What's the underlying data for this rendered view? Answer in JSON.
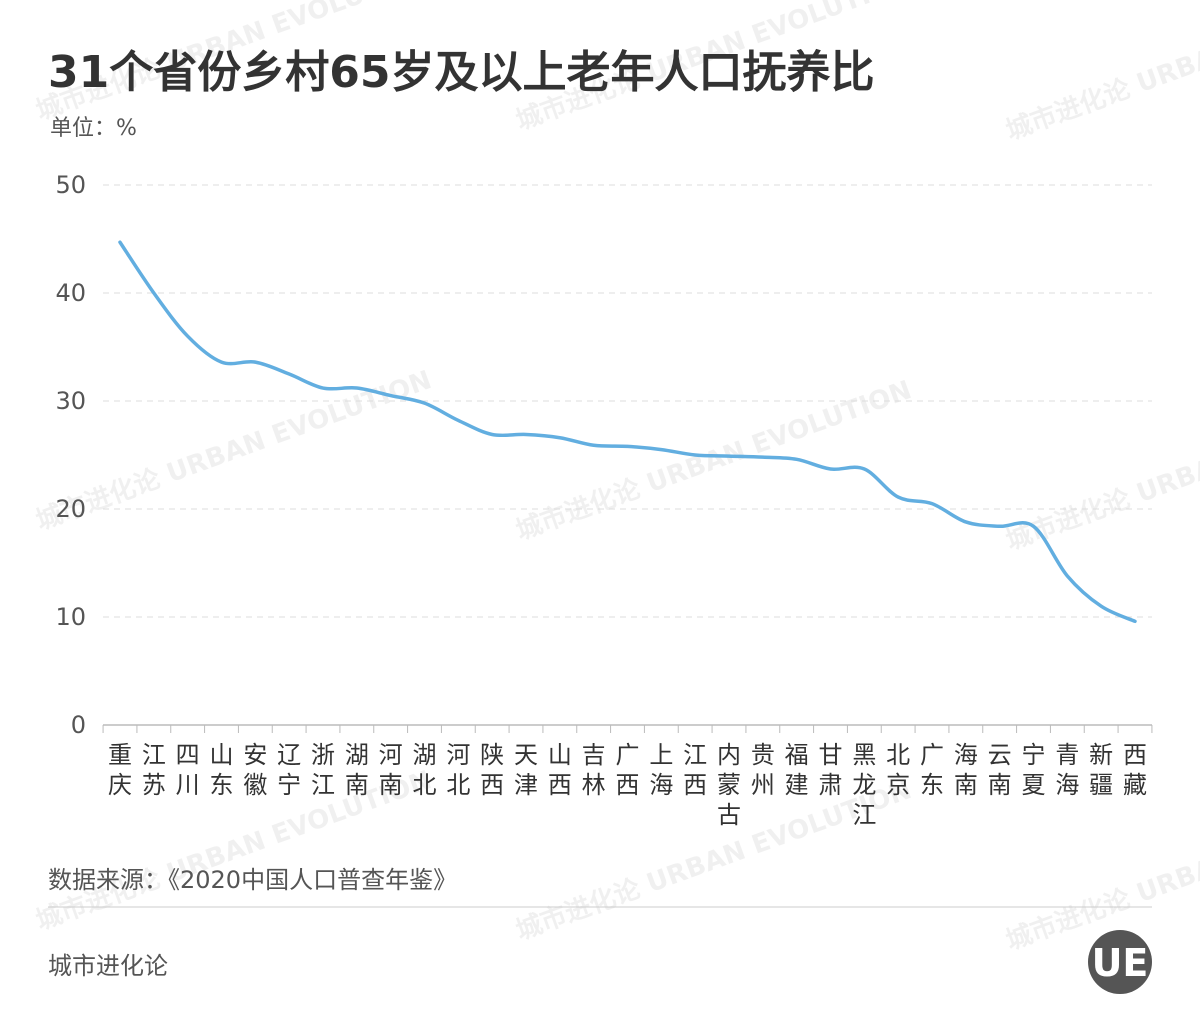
{
  "chart_data": {
    "type": "line",
    "title": "31个省份乡村65岁及以上老年人口抚养比",
    "unit": "单位：%",
    "categories": [
      "重庆",
      "江苏",
      "四川",
      "山东",
      "安徽",
      "辽宁",
      "浙江",
      "湖南",
      "河南",
      "湖北",
      "河北",
      "陕西",
      "天津",
      "山西",
      "吉林",
      "广西",
      "上海",
      "江西",
      "内蒙古",
      "贵州",
      "福建",
      "甘肃",
      "黑龙江",
      "北京",
      "广东",
      "海南",
      "云南",
      "宁夏",
      "青海",
      "新疆",
      "西藏"
    ],
    "values": [
      44.7,
      40.0,
      36.0,
      33.6,
      33.6,
      32.5,
      31.2,
      31.2,
      30.5,
      29.8,
      28.2,
      26.9,
      26.9,
      26.6,
      25.9,
      25.8,
      25.5,
      25.0,
      24.9,
      24.8,
      24.6,
      23.7,
      23.7,
      21.1,
      20.5,
      18.8,
      18.4,
      18.4,
      13.8,
      11.0,
      9.6
    ],
    "color": "#62aee0",
    "ylim": [
      0,
      50
    ],
    "yticks": [
      0,
      10,
      20,
      30,
      40,
      50
    ],
    "grid": true,
    "source": "数据来源：《2020中国人口普查年鉴》",
    "footer": "城市进化论",
    "watermark": "城市进化论 URBAN EVOLUTION",
    "logo": "UE"
  }
}
